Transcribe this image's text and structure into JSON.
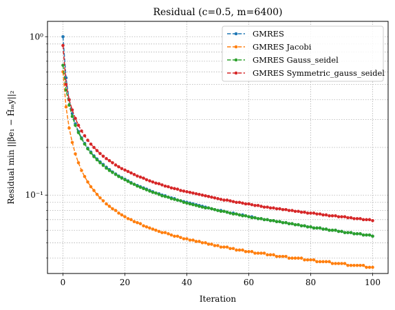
{
  "chart_data": {
    "type": "line",
    "title": "Residual (c=0.5, m=6400)",
    "xlabel": "Iteration",
    "ylabel": "Residual min ||βe₁ − H̄ₘy||₂",
    "xlim": [
      -5,
      105
    ],
    "ylim": [
      0.032,
      1.25
    ],
    "yscale": "log",
    "grid": true,
    "legend_position": "top-right",
    "x_ticks": [
      0,
      20,
      40,
      60,
      80,
      100
    ],
    "x_tick_labels": [
      "0",
      "20",
      "40",
      "60",
      "80",
      "100"
    ],
    "y_major_ticks": [
      0.1,
      1
    ],
    "y_major_tick_labels": [
      "10⁻¹",
      "10⁰"
    ],
    "y_minor_ticks": [
      0.04,
      0.05,
      0.06,
      0.07,
      0.08,
      0.09,
      0.2,
      0.3,
      0.4,
      0.5,
      0.6,
      0.7,
      0.8,
      0.9
    ],
    "x": [
      0,
      1,
      2,
      3,
      4,
      5,
      6,
      7,
      8,
      9,
      10,
      11,
      12,
      13,
      14,
      15,
      16,
      17,
      18,
      19,
      20,
      21,
      22,
      23,
      24,
      25,
      26,
      27,
      28,
      29,
      30,
      31,
      32,
      33,
      34,
      35,
      36,
      37,
      38,
      39,
      40,
      41,
      42,
      43,
      44,
      45,
      46,
      47,
      48,
      49,
      50,
      51,
      52,
      53,
      54,
      55,
      56,
      57,
      58,
      59,
      60,
      61,
      62,
      63,
      64,
      65,
      66,
      67,
      68,
      69,
      70,
      71,
      72,
      73,
      74,
      75,
      76,
      77,
      78,
      79,
      80,
      81,
      82,
      83,
      84,
      85,
      86,
      87,
      88,
      89,
      90,
      91,
      92,
      93,
      94,
      95,
      96,
      97,
      98,
      99,
      100
    ],
    "series": [
      {
        "name": "GMRES",
        "color": "#1f77b4",
        "values": [
          1.0,
          0.55,
          0.4,
          0.327,
          0.282,
          0.252,
          0.23,
          0.212,
          0.198,
          0.187,
          0.177,
          0.169,
          0.162,
          0.156,
          0.15,
          0.145,
          0.14,
          0.136,
          0.132,
          0.129,
          0.126,
          0.123,
          0.12,
          0.117,
          0.115,
          0.113,
          0.111,
          0.109,
          0.107,
          0.105,
          0.103,
          0.102,
          0.1,
          0.099,
          0.097,
          0.096,
          0.095,
          0.093,
          0.092,
          0.091,
          0.09,
          0.089,
          0.088,
          0.087,
          0.086,
          0.085,
          0.084,
          0.083,
          0.082,
          0.081,
          0.08,
          0.08,
          0.079,
          0.078,
          0.077,
          0.077,
          0.076,
          0.075,
          0.075,
          0.074,
          0.073,
          0.073,
          0.072,
          0.071,
          0.071,
          0.07,
          0.07,
          0.069,
          0.069,
          0.068,
          0.068,
          0.067,
          0.067,
          0.066,
          0.066,
          0.065,
          0.065,
          0.064,
          0.064,
          0.063,
          0.063,
          0.062,
          0.062,
          0.062,
          0.061,
          0.061,
          0.06,
          0.06,
          0.06,
          0.059,
          0.059,
          0.058,
          0.058,
          0.058,
          0.057,
          0.057,
          0.057,
          0.056,
          0.056,
          0.056,
          0.055
        ]
      },
      {
        "name": "GMRES Jacobi",
        "color": "#ff7f0e",
        "values": [
          0.6,
          0.36,
          0.265,
          0.215,
          0.182,
          0.16,
          0.143,
          0.131,
          0.121,
          0.113,
          0.107,
          0.101,
          0.096,
          0.092,
          0.088,
          0.085,
          0.082,
          0.08,
          0.077,
          0.075,
          0.073,
          0.071,
          0.07,
          0.068,
          0.067,
          0.066,
          0.064,
          0.063,
          0.062,
          0.061,
          0.06,
          0.059,
          0.058,
          0.058,
          0.057,
          0.056,
          0.055,
          0.055,
          0.054,
          0.053,
          0.053,
          0.052,
          0.052,
          0.051,
          0.051,
          0.05,
          0.05,
          0.049,
          0.049,
          0.048,
          0.048,
          0.047,
          0.047,
          0.047,
          0.046,
          0.046,
          0.045,
          0.045,
          0.045,
          0.044,
          0.044,
          0.044,
          0.043,
          0.043,
          0.043,
          0.043,
          0.042,
          0.042,
          0.042,
          0.041,
          0.041,
          0.041,
          0.041,
          0.04,
          0.04,
          0.04,
          0.04,
          0.04,
          0.039,
          0.039,
          0.039,
          0.039,
          0.038,
          0.038,
          0.038,
          0.038,
          0.038,
          0.037,
          0.037,
          0.037,
          0.037,
          0.037,
          0.036,
          0.036,
          0.036,
          0.036,
          0.036,
          0.036,
          0.035,
          0.035,
          0.035
        ]
      },
      {
        "name": "GMRES Gauss_seidel",
        "color": "#2ca02c",
        "values": [
          0.66,
          0.46,
          0.37,
          0.314,
          0.276,
          0.248,
          0.227,
          0.21,
          0.196,
          0.185,
          0.175,
          0.167,
          0.16,
          0.154,
          0.148,
          0.143,
          0.139,
          0.135,
          0.131,
          0.128,
          0.125,
          0.122,
          0.119,
          0.117,
          0.114,
          0.112,
          0.11,
          0.108,
          0.106,
          0.104,
          0.103,
          0.101,
          0.099,
          0.098,
          0.097,
          0.095,
          0.094,
          0.093,
          0.092,
          0.09,
          0.089,
          0.088,
          0.087,
          0.086,
          0.085,
          0.084,
          0.083,
          0.083,
          0.082,
          0.081,
          0.08,
          0.079,
          0.079,
          0.078,
          0.077,
          0.076,
          0.076,
          0.075,
          0.074,
          0.074,
          0.073,
          0.072,
          0.072,
          0.071,
          0.071,
          0.07,
          0.07,
          0.069,
          0.069,
          0.068,
          0.068,
          0.067,
          0.067,
          0.066,
          0.066,
          0.065,
          0.065,
          0.064,
          0.064,
          0.063,
          0.063,
          0.062,
          0.062,
          0.062,
          0.061,
          0.061,
          0.06,
          0.06,
          0.06,
          0.059,
          0.059,
          0.058,
          0.058,
          0.058,
          0.057,
          0.057,
          0.057,
          0.056,
          0.056,
          0.056,
          0.055
        ]
      },
      {
        "name": "GMRES Symmetric_gauss_seidel",
        "color": "#d62728",
        "values": [
          0.88,
          0.5,
          0.4,
          0.345,
          0.305,
          0.276,
          0.254,
          0.237,
          0.222,
          0.21,
          0.2,
          0.191,
          0.183,
          0.176,
          0.17,
          0.165,
          0.16,
          0.155,
          0.151,
          0.147,
          0.144,
          0.141,
          0.138,
          0.135,
          0.132,
          0.13,
          0.128,
          0.125,
          0.123,
          0.121,
          0.119,
          0.118,
          0.116,
          0.114,
          0.113,
          0.111,
          0.11,
          0.109,
          0.107,
          0.106,
          0.105,
          0.104,
          0.103,
          0.102,
          0.101,
          0.1,
          0.099,
          0.098,
          0.097,
          0.096,
          0.095,
          0.094,
          0.093,
          0.093,
          0.092,
          0.091,
          0.09,
          0.09,
          0.089,
          0.088,
          0.088,
          0.087,
          0.086,
          0.086,
          0.085,
          0.084,
          0.084,
          0.083,
          0.083,
          0.082,
          0.082,
          0.081,
          0.081,
          0.08,
          0.08,
          0.079,
          0.079,
          0.078,
          0.078,
          0.077,
          0.077,
          0.077,
          0.076,
          0.076,
          0.075,
          0.075,
          0.074,
          0.074,
          0.074,
          0.073,
          0.073,
          0.073,
          0.072,
          0.072,
          0.071,
          0.071,
          0.071,
          0.07,
          0.07,
          0.07,
          0.069
        ]
      }
    ]
  }
}
